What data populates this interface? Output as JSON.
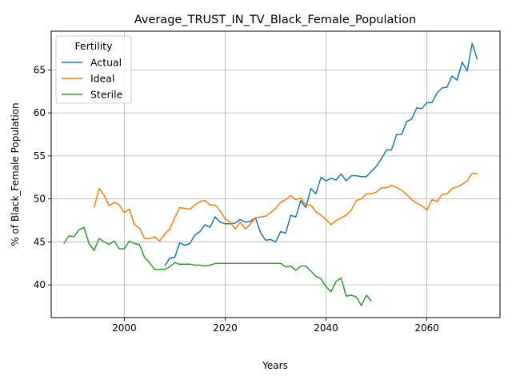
{
  "chart_data": {
    "type": "line",
    "title": "Average_TRUST_IN_TV_Black_Female_Population",
    "xlabel": "Years",
    "ylabel": "% of Black_Female Population",
    "xlim": [
      1985.5,
      2074.5
    ],
    "ylim": [
      36.2,
      69.5
    ],
    "xticks": [
      2000,
      2020,
      2040,
      2060
    ],
    "yticks": [
      40,
      45,
      50,
      55,
      60,
      65
    ],
    "grid": true,
    "legend": {
      "title": "Fertility",
      "position": "top-left"
    },
    "series": [
      {
        "name": "Actual",
        "color": "#1f77b4",
        "x": [
          2008,
          2009,
          2010,
          2011,
          2012,
          2013,
          2014,
          2015,
          2016,
          2017,
          2018,
          2019,
          2020,
          2021,
          2022,
          2023,
          2024,
          2025,
          2026,
          2027,
          2028,
          2029,
          2030,
          2031,
          2032,
          2033,
          2034,
          2035,
          2036,
          2037,
          2038,
          2039,
          2040,
          2041,
          2042,
          2043,
          2044,
          2045,
          2046,
          2047,
          2048,
          2049,
          2050,
          2051,
          2052,
          2053,
          2054,
          2055,
          2056,
          2057,
          2058,
          2059,
          2060,
          2061,
          2062,
          2063,
          2064,
          2065,
          2066,
          2067,
          2068,
          2069,
          2070
        ],
        "values": [
          42.2,
          43.1,
          43.2,
          44.9,
          44.6,
          44.8,
          45.8,
          46.2,
          47.0,
          46.7,
          47.9,
          47.3,
          47.1,
          47.1,
          47.2,
          47.6,
          47.3,
          47.4,
          47.8,
          46.1,
          45.2,
          45.3,
          45.0,
          46.2,
          46.0,
          48.1,
          47.9,
          49.8,
          49.0,
          51.2,
          50.6,
          52.5,
          52.1,
          52.4,
          52.2,
          52.9,
          52.1,
          52.7,
          52.7,
          52.6,
          52.6,
          53.2,
          53.8,
          54.7,
          55.7,
          55.7,
          57.5,
          57.5,
          59.0,
          59.3,
          60.6,
          60.5,
          61.2,
          61.2,
          62.3,
          62.9,
          63.0,
          64.3,
          63.8,
          65.9,
          64.9,
          68.1,
          66.2
        ]
      },
      {
        "name": "Ideal",
        "color": "#ff7f0e",
        "x": [
          1994,
          1995,
          1996,
          1997,
          1998,
          1999,
          2000,
          2001,
          2002,
          2003,
          2004,
          2005,
          2006,
          2007,
          2008,
          2009,
          2010,
          2011,
          2012,
          2013,
          2014,
          2015,
          2016,
          2017,
          2018,
          2019,
          2020,
          2021,
          2022,
          2023,
          2024,
          2025,
          2026,
          2027,
          2028,
          2029,
          2030,
          2031,
          2032,
          2033,
          2034,
          2035,
          2036,
          2037,
          2038,
          2039,
          2040,
          2041,
          2042,
          2043,
          2044,
          2045,
          2046,
          2047,
          2048,
          2049,
          2050,
          2051,
          2052,
          2053,
          2054,
          2055,
          2056,
          2057,
          2058,
          2059,
          2060,
          2061,
          2062,
          2063,
          2064,
          2065,
          2066,
          2067,
          2068,
          2069,
          2070
        ],
        "values": [
          49.0,
          51.2,
          50.4,
          49.2,
          49.6,
          49.3,
          48.4,
          48.8,
          47.0,
          46.6,
          45.4,
          45.4,
          45.6,
          45.1,
          45.9,
          46.5,
          47.8,
          49.0,
          48.9,
          48.8,
          49.3,
          49.7,
          49.8,
          49.3,
          49.3,
          48.6,
          47.7,
          47.3,
          46.5,
          47.3,
          46.5,
          47.1,
          47.8,
          47.9,
          48.0,
          48.4,
          48.9,
          49.6,
          49.9,
          50.4,
          49.9,
          50.1,
          49.3,
          49.3,
          48.5,
          48.1,
          47.6,
          47.0,
          47.5,
          47.8,
          48.1,
          48.7,
          49.8,
          50.0,
          50.6,
          50.6,
          50.8,
          51.3,
          51.3,
          51.6,
          51.3,
          51.0,
          50.5,
          49.9,
          49.5,
          49.2,
          48.7,
          49.9,
          49.7,
          50.5,
          50.6,
          51.2,
          51.4,
          51.7,
          52.1,
          53.0,
          52.9
        ]
      },
      {
        "name": "Sterile",
        "color": "#2ca02c",
        "x": [
          1988,
          1989,
          1990,
          1991,
          1992,
          1993,
          1994,
          1995,
          1996,
          1997,
          1998,
          1999,
          2000,
          2001,
          2002,
          2003,
          2004,
          2005,
          2006,
          2007,
          2008,
          2009,
          2010,
          2011,
          2012,
          2013,
          2014,
          2015,
          2016,
          2017,
          2018,
          2019,
          2020,
          2021,
          2022,
          2023,
          2024,
          2025,
          2026,
          2027,
          2028,
          2029,
          2030,
          2031,
          2032,
          2033,
          2034,
          2035,
          2036,
          2037,
          2038,
          2039,
          2040,
          2041,
          2042,
          2043,
          2044,
          2045,
          2046,
          2047,
          2048,
          2049
        ],
        "values": [
          44.8,
          45.7,
          45.6,
          46.4,
          46.7,
          44.8,
          44.0,
          45.4,
          45.0,
          44.7,
          45.1,
          44.2,
          44.2,
          45.1,
          44.8,
          44.7,
          43.2,
          42.6,
          41.8,
          41.8,
          41.8,
          42.1,
          42.6,
          42.4,
          42.4,
          42.4,
          42.3,
          42.3,
          42.2,
          42.3,
          42.5,
          42.5,
          42.5,
          42.5,
          42.5,
          42.5,
          42.5,
          42.5,
          42.5,
          42.5,
          42.5,
          42.5,
          42.5,
          42.5,
          42.1,
          42.2,
          41.7,
          42.2,
          42.2,
          41.6,
          41.0,
          40.7,
          39.8,
          39.2,
          40.4,
          40.8,
          38.7,
          38.8,
          38.6,
          37.6,
          38.8,
          38.1
        ]
      }
    ]
  }
}
